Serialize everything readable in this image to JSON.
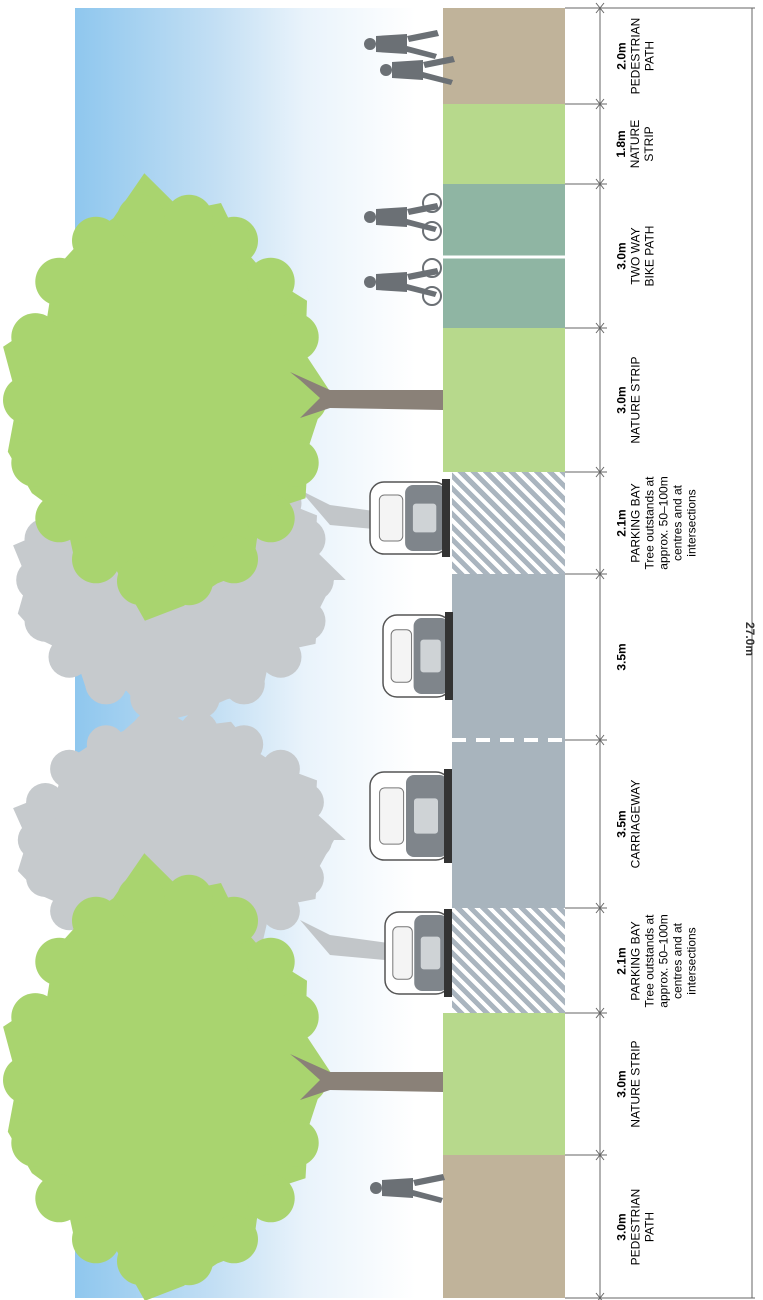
{
  "sections": [
    {
      "width": "2.0m",
      "name": "PEDESTRIAN\nPATH",
      "type": "pedestrian",
      "lines": [
        "PEDESTRIAN",
        "PATH"
      ]
    },
    {
      "width": "1.8m",
      "name": "NATURE STRIP",
      "type": "nature",
      "lines": [
        "NATURE",
        "STRIP"
      ]
    },
    {
      "width": "3.0m",
      "name": "TWO WAY BIKE PATH",
      "type": "bike",
      "lines": [
        "TWO WAY",
        "BIKE PATH"
      ]
    },
    {
      "width": "3.0m",
      "name": "NATURE STRIP",
      "type": "nature",
      "lines": [
        "NATURE STRIP"
      ]
    },
    {
      "width": "2.1m",
      "name": "PARKING BAY",
      "type": "parking",
      "lines": [
        "PARKING BAY",
        "Tree outstands at",
        "approx. 50–100m",
        "centres and at",
        "intersections"
      ]
    },
    {
      "width": "3.5m",
      "name": "CARRIAGEWAY",
      "type": "carriage",
      "lines": []
    },
    {
      "width": "3.5m",
      "name": "CARRIAGEWAY",
      "type": "carriage",
      "lines": [
        "CARRIAGEWAY"
      ]
    },
    {
      "width": "2.1m",
      "name": "PARKING BAY",
      "type": "parking",
      "lines": [
        "PARKING BAY",
        "Tree outstands at",
        "approx. 50–100m",
        "centres and at",
        "intersections"
      ]
    },
    {
      "width": "3.0m",
      "name": "NATURE STRIP",
      "type": "nature",
      "lines": [
        "NATURE STRIP"
      ]
    },
    {
      "width": "3.0m",
      "name": "PEDESTRIAN PATH",
      "type": "pedestrian",
      "lines": [
        "PEDESTRIAN",
        "PATH"
      ]
    }
  ],
  "total_width": "27.0m",
  "colors": {
    "pedestrian": "#c0b39a",
    "nature": "#b7d98c",
    "bike": "#8fb5a3",
    "carriage": "#a8b4bd",
    "tree_green": "#a9d46f",
    "tree_grey": "#c6cacd",
    "trunk": "#8a8178",
    "car_body": "#9aa0a6",
    "figure": "#6b7075"
  }
}
